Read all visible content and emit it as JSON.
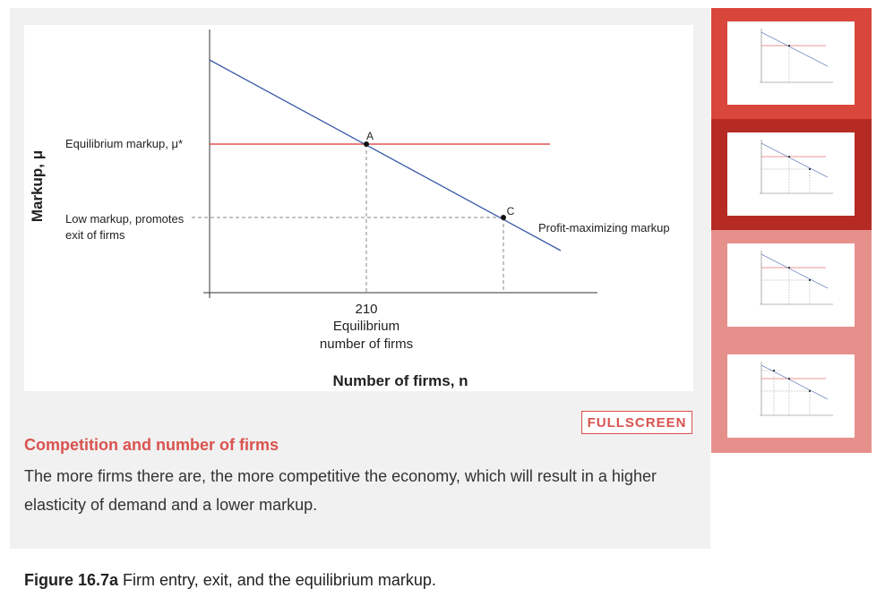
{
  "chart_data": {
    "type": "line",
    "xlabel": "Number of firms, n",
    "ylabel": "Markup, μ",
    "x_tick": {
      "value": 210,
      "label": "210",
      "sublabel_1": "Equilibrium",
      "sublabel_2": "number of firms"
    },
    "equilibrium_label": "Equilibrium markup, μ*",
    "low_markup_label_1": "Low markup, promotes",
    "low_markup_label_2": "exit of firms",
    "curve_label": "Profit-maximizing markup",
    "points": [
      {
        "name": "A",
        "label": "A"
      },
      {
        "name": "C",
        "label": "C"
      }
    ],
    "colors": {
      "curve": "#3a5aa8",
      "equilibrium": "#d9302c",
      "dashed": "#888888"
    }
  },
  "fullscreen_label": "FULLSCREEN",
  "step": {
    "title": "Competition and number of firms",
    "description": "The more firms there are, the more competitive the economy, which will result in a higher elasticity of demand and a lower markup."
  },
  "caption": {
    "number": "Figure 16.7a",
    "text": " Firm entry, exit, and the equilibrium markup."
  },
  "thumbnails": [
    {
      "state": "inactive",
      "bg": "#d9463c"
    },
    {
      "state": "active",
      "bg": "#b52b24"
    },
    {
      "state": "inactive",
      "bg": "#e6908c"
    },
    {
      "state": "inactive",
      "bg": "#e6908c"
    }
  ]
}
